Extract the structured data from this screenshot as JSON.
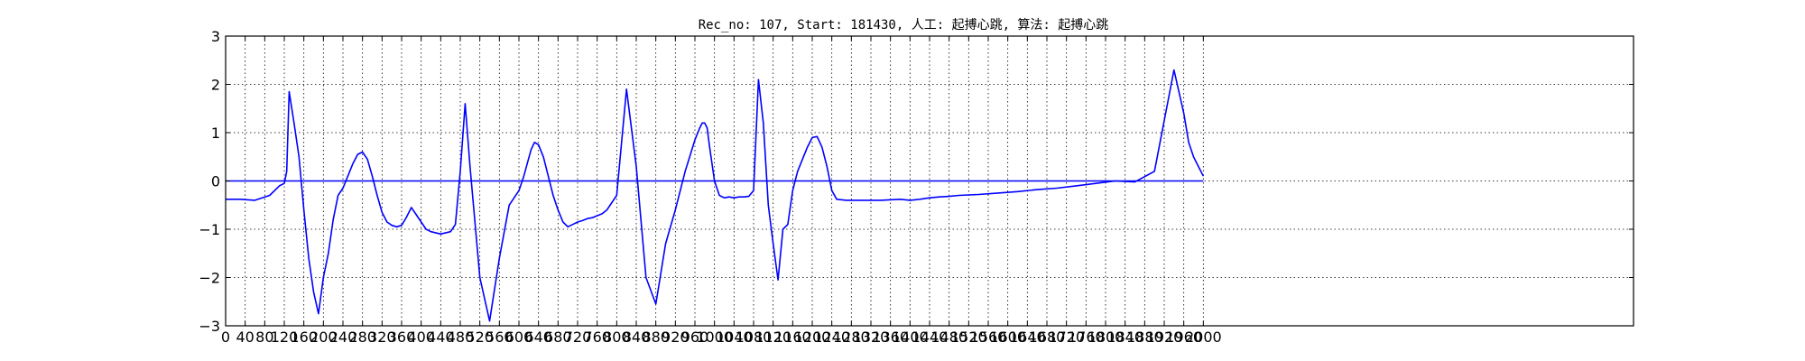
{
  "chart_data": {
    "type": "line",
    "title": "Rec_no: 107, Start: 181430, 人工: 起搏心跳, 算法: 起搏心跳",
    "xlabel": "",
    "ylabel": "",
    "xlim": [
      0,
      2880
    ],
    "ylim": [
      -3,
      3
    ],
    "x_tick_step": 40,
    "x_ticks_visible_until": 2000,
    "y_ticks": [
      -3,
      -2,
      -1,
      0,
      1,
      2,
      3
    ],
    "grid": true,
    "colors": {
      "normal": "#0000ff",
      "highlight": "#ff0000"
    },
    "series": [
      {
        "color": "#0000ff",
        "x": [
          0,
          30,
          60,
          90,
          110,
          120,
          125,
          130,
          140,
          150,
          160,
          170,
          180,
          190,
          200,
          210,
          220,
          230,
          240,
          250,
          260,
          270,
          280,
          290,
          300,
          310,
          320,
          330,
          340,
          350,
          360,
          370,
          380,
          390,
          400,
          410,
          420,
          440,
          460,
          470,
          480,
          490,
          500,
          520,
          540,
          560,
          580,
          600,
          610,
          618,
          625,
          632,
          640,
          650,
          660,
          670,
          680,
          690,
          700,
          710,
          720,
          730,
          740,
          750,
          760,
          770,
          780,
          800,
          820,
          840,
          860,
          880,
          900,
          920,
          940,
          960,
          970,
          975,
          980,
          985,
          990,
          1000,
          1010,
          1020,
          1030,
          1040,
          1050,
          1060,
          1070,
          1080,
          1090,
          1100,
          1110,
          1120,
          1130,
          1140,
          1150,
          1160,
          1170,
          1180,
          1190,
          1200,
          1210,
          1220,
          1230,
          1240,
          1250,
          1270,
          1300,
          1340,
          1380,
          1400,
          1420,
          1440,
          1460,
          1480,
          1500,
          1540,
          1580,
          1620,
          1660,
          1700,
          1740,
          1780,
          1820,
          1860,
          1900,
          1940,
          1960,
          1970,
          1980,
          1990,
          2000
        ],
        "y": [
          -0.38,
          -0.38,
          -0.4,
          -0.3,
          -0.1,
          -0.05,
          0.2,
          1.85,
          1.2,
          0.5,
          -0.6,
          -1.6,
          -2.3,
          -2.75,
          -2.0,
          -1.5,
          -0.8,
          -0.3,
          -0.15,
          0.1,
          0.35,
          0.55,
          0.6,
          0.45,
          0.1,
          -0.3,
          -0.65,
          -0.85,
          -0.92,
          -0.95,
          -0.92,
          -0.75,
          -0.55,
          -0.7,
          -0.85,
          -1.0,
          -1.05,
          -1.1,
          -1.05,
          -0.9,
          0.2,
          1.6,
          0.3,
          -2.0,
          -2.9,
          -1.6,
          -0.5,
          -0.2,
          0.1,
          0.4,
          0.65,
          0.8,
          0.75,
          0.5,
          0.1,
          -0.3,
          -0.6,
          -0.85,
          -0.95,
          -0.9,
          -0.85,
          -0.82,
          -0.78,
          -0.76,
          -0.72,
          -0.68,
          -0.6,
          -0.3,
          1.9,
          0.3,
          -2.0,
          -2.55,
          -1.3,
          -0.6,
          0.2,
          0.85,
          1.1,
          1.2,
          1.2,
          1.1,
          0.7,
          0.0,
          -0.3,
          -0.35,
          -0.33,
          -0.35,
          -0.33,
          -0.33,
          -0.32,
          -0.2,
          2.1,
          1.2,
          -0.5,
          -1.3,
          -2.05,
          -1.0,
          -0.9,
          -0.2,
          0.2,
          0.45,
          0.7,
          0.9,
          0.92,
          0.7,
          0.3,
          -0.2,
          -0.38,
          -0.4,
          -0.4,
          -0.4,
          -0.38,
          -0.4,
          -0.38,
          -0.35,
          -0.33,
          -0.32,
          -0.3,
          -0.28,
          -0.25,
          -0.22,
          -0.18,
          -0.15,
          -0.1,
          -0.05,
          0.0,
          -0.02,
          0.2,
          2.3,
          1.4,
          0.8,
          0.5,
          0.3,
          0.1
        ]
      },
      {
        "color": "#0000ff",
        "x": [
          0,
          2000
        ],
        "y": [
          0,
          0
        ]
      }
    ]
  }
}
